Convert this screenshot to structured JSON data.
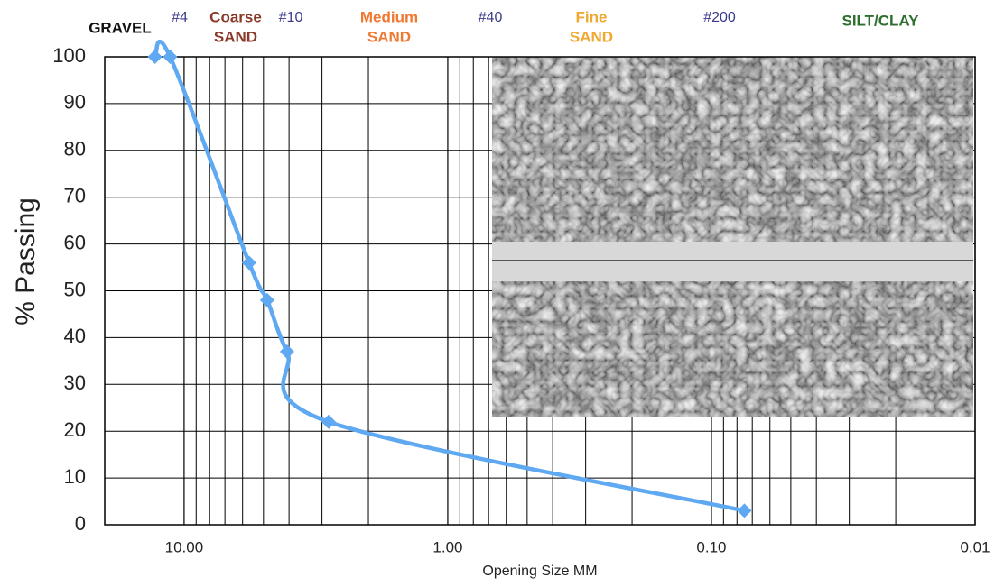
{
  "chart_data": {
    "type": "line",
    "x_label": "Opening Size MM",
    "y_label": "% Passing",
    "x_log": true,
    "xlim": [
      20,
      0.01
    ],
    "xticks": [
      {
        "value": 10,
        "label": "10.00"
      },
      {
        "value": 1,
        "label": "1.00"
      },
      {
        "value": 0.1,
        "label": "0.10"
      },
      {
        "value": 0.01,
        "label": "0.01"
      }
    ],
    "ylim": [
      0,
      100
    ],
    "yticks": [
      0,
      10,
      20,
      30,
      40,
      50,
      60,
      70,
      80,
      90,
      100
    ],
    "grid": true,
    "color": "#5fa8f2",
    "x": [
      12.9,
      11.3,
      5.67,
      4.84,
      4.07,
      2.83,
      0.075
    ],
    "values": [
      100,
      100,
      56,
      48,
      37,
      22,
      3
    ],
    "annotations": [
      {
        "lines": [
          "GRAVEL"
        ],
        "color": "#111111"
      },
      {
        "lines": [
          "#4"
        ],
        "color": "#3a3a8c"
      },
      {
        "lines": [
          "Coarse",
          "SAND"
        ],
        "color": "#8b3a2a"
      },
      {
        "lines": [
          "#10"
        ],
        "color": "#3a3a8c"
      },
      {
        "lines": [
          "Medium",
          "SAND"
        ],
        "color": "#f07830"
      },
      {
        "lines": [
          "#40"
        ],
        "color": "#3a3a8c"
      },
      {
        "lines": [
          "Fine",
          "SAND"
        ],
        "color": "#f0a830"
      },
      {
        "lines": [
          "#200"
        ],
        "color": "#3a3a8c"
      },
      {
        "lines": [
          "SILT/CLAY"
        ],
        "color": "#2e6e2e"
      }
    ]
  }
}
